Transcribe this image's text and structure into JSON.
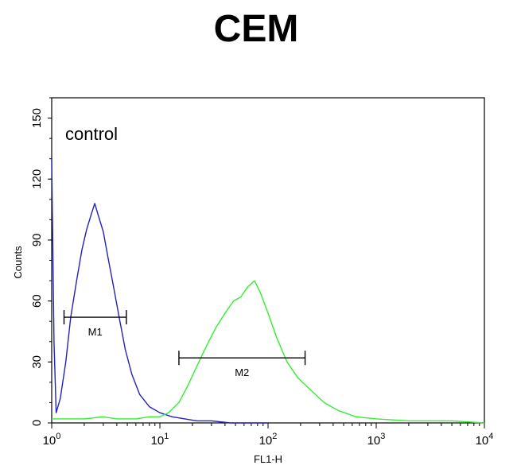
{
  "chart_data": {
    "type": "line",
    "title": "CEM",
    "xlabel": "FL1-H",
    "ylabel": "Counts",
    "xscale": "log",
    "xlim": [
      1,
      10000
    ],
    "ylim": [
      0,
      160
    ],
    "x_ticks": [
      {
        "value": 1,
        "base": "10",
        "exp": "0"
      },
      {
        "value": 10,
        "base": "10",
        "exp": "1"
      },
      {
        "value": 100,
        "base": "10",
        "exp": "2"
      },
      {
        "value": 1000,
        "base": "10",
        "exp": "3"
      },
      {
        "value": 10000,
        "base": "10",
        "exp": "4"
      }
    ],
    "y_ticks": [
      0,
      30,
      60,
      90,
      120,
      150
    ],
    "annotation": "control",
    "colors": {
      "control": "#2222bb",
      "sample": "#33ee33"
    },
    "series": [
      {
        "color": "#2222bb",
        "x": [
          1.0,
          1.05,
          1.1,
          1.2,
          1.35,
          1.5,
          1.7,
          1.9,
          2.1,
          2.3,
          2.5,
          2.7,
          3.0,
          3.3,
          3.7,
          4.2,
          4.8,
          5.5,
          6.5,
          8.0,
          10,
          13,
          17,
          22,
          30,
          45,
          70,
          100
        ],
        "y": [
          130,
          40,
          5,
          12,
          30,
          52,
          70,
          85,
          95,
          102,
          108,
          102,
          94,
          82,
          68,
          52,
          36,
          24,
          14,
          8,
          5,
          3,
          2,
          1,
          1,
          0,
          0,
          0
        ]
      },
      {
        "color": "#33ee33",
        "x": [
          1.0,
          2,
          3,
          4,
          6,
          8,
          10,
          12,
          15,
          18,
          22,
          27,
          33,
          40,
          48,
          56,
          65,
          75,
          85,
          100,
          120,
          150,
          190,
          250,
          330,
          450,
          650,
          1000,
          2000,
          5000,
          10000
        ],
        "y": [
          2,
          2,
          3,
          2,
          2,
          3,
          3,
          5,
          10,
          18,
          28,
          38,
          47,
          54,
          60,
          62,
          67,
          70,
          64,
          54,
          42,
          30,
          22,
          16,
          10,
          6,
          3,
          2,
          1,
          1,
          0
        ]
      }
    ],
    "markers": [
      {
        "label": "M1",
        "x1": 1.3,
        "x2": 4.9,
        "y": 52
      },
      {
        "label": "M2",
        "x1": 15,
        "x2": 220,
        "y": 32
      }
    ]
  }
}
